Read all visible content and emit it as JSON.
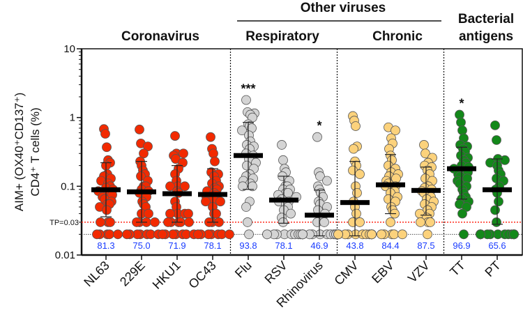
{
  "chart_data": {
    "type": "scatter",
    "ylabel_line1": "AIM+ (OX40⁺CD137⁺)",
    "ylabel_line2": "CD4⁺ T cells (%)",
    "yscale": "log",
    "ylim": [
      0.01,
      10
    ],
    "yticks": [
      "0.01",
      "0.1",
      "1",
      "10"
    ],
    "ytick_values": [
      0.01,
      0.1,
      1,
      10
    ],
    "threshold": {
      "label": "TP=0.03",
      "value": 0.03,
      "color": "#ff2a1a"
    },
    "baseline_value": 0.02,
    "groups": [
      {
        "label": "Coronavirus",
        "members": [
          0,
          1,
          2,
          3
        ]
      },
      {
        "label": "Respiratory",
        "members": [
          4,
          5,
          6
        ],
        "parent": "Other viruses"
      },
      {
        "label": "Chronic",
        "members": [
          7,
          8,
          9
        ],
        "parent": "Other viruses"
      },
      {
        "label": "Bacterial antigens",
        "line1": "Bacterial",
        "line2": "antigens",
        "members": [
          10,
          11
        ]
      }
    ],
    "parent_group": "Other viruses",
    "series": [
      {
        "name": "NL63",
        "color": "#f22a00",
        "median": 0.089,
        "q1": 0.036,
        "q3": 0.22,
        "percent": "81.3",
        "sig": "",
        "values": [
          0.68,
          0.58,
          0.37,
          0.24,
          0.22,
          0.2,
          0.15,
          0.14,
          0.13,
          0.12,
          0.11,
          0.1,
          0.095,
          0.09,
          0.085,
          0.08,
          0.075,
          0.07,
          0.065,
          0.06,
          0.055,
          0.055,
          0.05,
          0.045,
          0.03,
          0.03,
          0.03,
          0.02,
          0.02,
          0.02,
          0.02,
          0.02
        ]
      },
      {
        "name": "229E",
        "color": "#f22a00",
        "median": 0.083,
        "q1": 0.03,
        "q3": 0.23,
        "percent": "75.0",
        "sig": "",
        "values": [
          0.67,
          0.42,
          0.38,
          0.3,
          0.23,
          0.2,
          0.17,
          0.15,
          0.14,
          0.12,
          0.1,
          0.1,
          0.09,
          0.085,
          0.08,
          0.07,
          0.06,
          0.055,
          0.05,
          0.04,
          0.04,
          0.03,
          0.03,
          0.03,
          0.03,
          0.02,
          0.02,
          0.02,
          0.02,
          0.02,
          0.02,
          0.02
        ]
      },
      {
        "name": "HKU1",
        "color": "#f22a00",
        "median": 0.078,
        "q1": 0.03,
        "q3": 0.2,
        "percent": "71.9",
        "sig": "",
        "values": [
          0.54,
          0.3,
          0.3,
          0.28,
          0.25,
          0.22,
          0.18,
          0.15,
          0.12,
          0.1,
          0.1,
          0.1,
          0.085,
          0.08,
          0.06,
          0.05,
          0.04,
          0.04,
          0.04,
          0.04,
          0.03,
          0.03,
          0.03,
          0.03,
          0.03,
          0.02,
          0.02,
          0.02,
          0.02,
          0.02,
          0.02,
          0.02
        ]
      },
      {
        "name": "OC43",
        "color": "#f22a00",
        "median": 0.076,
        "q1": 0.03,
        "q3": 0.18,
        "percent": "78.1",
        "sig": "",
        "values": [
          0.52,
          0.35,
          0.3,
          0.23,
          0.16,
          0.15,
          0.14,
          0.12,
          0.11,
          0.1,
          0.095,
          0.09,
          0.085,
          0.08,
          0.075,
          0.07,
          0.065,
          0.06,
          0.06,
          0.05,
          0.04,
          0.04,
          0.03,
          0.03,
          0.03,
          0.02,
          0.02,
          0.02,
          0.02,
          0.02,
          0.02,
          0.02
        ]
      },
      {
        "name": "Flu",
        "color": "#d4d4d4",
        "median": 0.28,
        "q1": 0.09,
        "q3": 0.85,
        "percent": "93.8",
        "sig": "***",
        "values": [
          1.8,
          1.2,
          1.15,
          1.1,
          1.0,
          0.8,
          0.75,
          0.7,
          0.65,
          0.55,
          0.45,
          0.4,
          0.38,
          0.35,
          0.3,
          0.28,
          0.25,
          0.22,
          0.2,
          0.18,
          0.15,
          0.14,
          0.13,
          0.12,
          0.11,
          0.1,
          0.1,
          0.06,
          0.05,
          0.03,
          0.02
        ]
      },
      {
        "name": "RSV",
        "color": "#d4d4d4",
        "median": 0.063,
        "q1": 0.029,
        "q3": 0.14,
        "percent": "78.1",
        "sig": "",
        "values": [
          0.4,
          0.24,
          0.18,
          0.16,
          0.14,
          0.12,
          0.1,
          0.1,
          0.09,
          0.09,
          0.08,
          0.08,
          0.075,
          0.07,
          0.065,
          0.06,
          0.06,
          0.055,
          0.05,
          0.045,
          0.04,
          0.035,
          0.03,
          0.02,
          0.02,
          0.02,
          0.02,
          0.02,
          0.02,
          0.02,
          0.02,
          0.02
        ]
      },
      {
        "name": "Rhinovirus",
        "color": "#d4d4d4",
        "median": 0.038,
        "q1": 0.019,
        "q3": 0.088,
        "percent": "46.9",
        "sig": "*",
        "values": [
          0.52,
          0.16,
          0.14,
          0.12,
          0.1,
          0.09,
          0.08,
          0.07,
          0.06,
          0.055,
          0.05,
          0.045,
          0.04,
          0.035,
          0.03,
          0.03,
          0.02,
          0.02,
          0.02,
          0.02,
          0.02,
          0.02,
          0.02,
          0.02,
          0.02,
          0.02,
          0.02,
          0.02,
          0.02,
          0.02,
          0.02,
          0.02
        ]
      },
      {
        "name": "CMV",
        "color": "#fcd27c",
        "median": 0.058,
        "q1": 0.019,
        "q3": 0.23,
        "percent": "43.8",
        "sig": "",
        "values": [
          1.05,
          0.9,
          0.75,
          0.38,
          0.35,
          0.23,
          0.2,
          0.17,
          0.15,
          0.1,
          0.08,
          0.06,
          0.05,
          0.04,
          0.03,
          0.03,
          0.02,
          0.02,
          0.02,
          0.02,
          0.02,
          0.02,
          0.02,
          0.02,
          0.02,
          0.02,
          0.02,
          0.02,
          0.02,
          0.02,
          0.02,
          0.02
        ]
      },
      {
        "name": "EBV",
        "color": "#fcd27c",
        "median": 0.105,
        "q1": 0.04,
        "q3": 0.29,
        "percent": "84.4",
        "sig": "",
        "values": [
          0.72,
          0.65,
          0.5,
          0.42,
          0.35,
          0.28,
          0.24,
          0.2,
          0.18,
          0.16,
          0.15,
          0.14,
          0.13,
          0.12,
          0.11,
          0.1,
          0.1,
          0.09,
          0.085,
          0.08,
          0.07,
          0.065,
          0.06,
          0.05,
          0.045,
          0.04,
          0.03,
          0.02,
          0.02,
          0.02,
          0.02,
          0.02
        ]
      },
      {
        "name": "VZV",
        "color": "#fcd27c",
        "median": 0.087,
        "q1": 0.038,
        "q3": 0.19,
        "percent": "87.5",
        "sig": "",
        "values": [
          0.4,
          0.3,
          0.26,
          0.22,
          0.2,
          0.19,
          0.17,
          0.15,
          0.13,
          0.12,
          0.1,
          0.095,
          0.09,
          0.085,
          0.08,
          0.07,
          0.065,
          0.06,
          0.055,
          0.05,
          0.045,
          0.04,
          0.04,
          0.035,
          0.03,
          0.03,
          0.03,
          0.02
        ]
      },
      {
        "name": "TT",
        "color": "#13881a",
        "median": 0.18,
        "q1": 0.065,
        "q3": 0.37,
        "percent": "96.9",
        "sig": "*",
        "values": [
          1.1,
          0.85,
          0.65,
          0.5,
          0.4,
          0.38,
          0.35,
          0.32,
          0.28,
          0.26,
          0.24,
          0.22,
          0.2,
          0.19,
          0.18,
          0.17,
          0.16,
          0.15,
          0.14,
          0.13,
          0.12,
          0.11,
          0.1,
          0.09,
          0.08,
          0.07,
          0.065,
          0.06,
          0.055,
          0.05,
          0.04,
          0.02
        ]
      },
      {
        "name": "PT",
        "color": "#13881a",
        "median": 0.089,
        "q1": 0.028,
        "q3": 0.25,
        "percent": "65.6",
        "sig": "",
        "values": [
          0.77,
          0.47,
          0.25,
          0.24,
          0.22,
          0.2,
          0.17,
          0.15,
          0.13,
          0.12,
          0.1,
          0.09,
          0.08,
          0.06,
          0.045,
          0.03,
          0.02,
          0.02,
          0.02,
          0.02,
          0.02,
          0.02,
          0.02,
          0.02,
          0.02,
          0.02,
          0.02,
          0.02,
          0.02,
          0.02,
          0.02,
          0.02
        ]
      }
    ]
  }
}
